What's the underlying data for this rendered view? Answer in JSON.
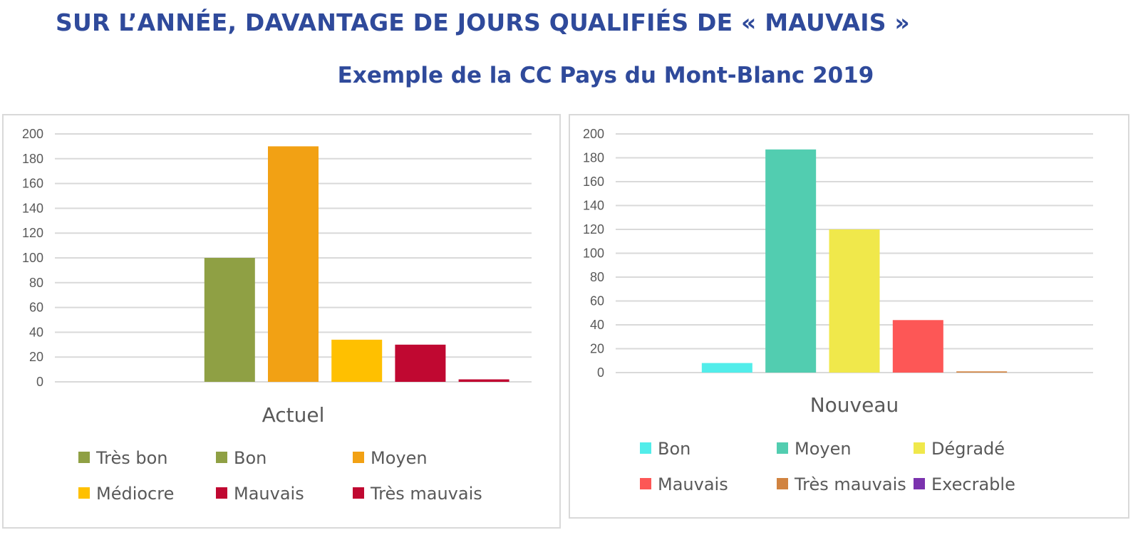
{
  "header": {
    "title": "SUR L’ANNÉE, DAVANTAGE DE JOURS QUALIFIÉS DE « MAUVAIS »",
    "subtitle": "Exemple de la CC Pays du Mont-Blanc 2019"
  },
  "chart_data": [
    {
      "type": "bar",
      "xlabel": "Actuel",
      "ylim": [
        0,
        200
      ],
      "yticks": [
        0,
        20,
        40,
        60,
        80,
        100,
        120,
        140,
        160,
        180,
        200
      ],
      "grid": true,
      "legend_position": "bottom",
      "series": [
        {
          "name": "Très bon",
          "value": 0,
          "color": "#8FA044"
        },
        {
          "name": "Bon",
          "value": 100,
          "color": "#8FA044"
        },
        {
          "name": "Moyen",
          "value": 190,
          "color": "#F2A114"
        },
        {
          "name": "Médiocre",
          "value": 34,
          "color": "#FFC000"
        },
        {
          "name": "Mauvais",
          "value": 30,
          "color": "#C00831"
        },
        {
          "name": "Très mauvais",
          "value": 2,
          "color": "#C00831"
        }
      ]
    },
    {
      "type": "bar",
      "xlabel": "Nouveau",
      "ylim": [
        0,
        200
      ],
      "yticks": [
        0,
        20,
        40,
        60,
        80,
        100,
        120,
        140,
        160,
        180,
        200
      ],
      "grid": true,
      "legend_position": "bottom",
      "series": [
        {
          "name": "Bon",
          "value": 8,
          "color": "#52EDEA"
        },
        {
          "name": "Moyen",
          "value": 187,
          "color": "#52CDB0"
        },
        {
          "name": "Dégradé",
          "value": 120,
          "color": "#F0E84B"
        },
        {
          "name": "Mauvais",
          "value": 44,
          "color": "#FD5756"
        },
        {
          "name": "Très mauvais",
          "value": 1,
          "color": "#D18340"
        },
        {
          "name": "Execrable",
          "value": 0,
          "color": "#7B33AE"
        }
      ]
    }
  ]
}
